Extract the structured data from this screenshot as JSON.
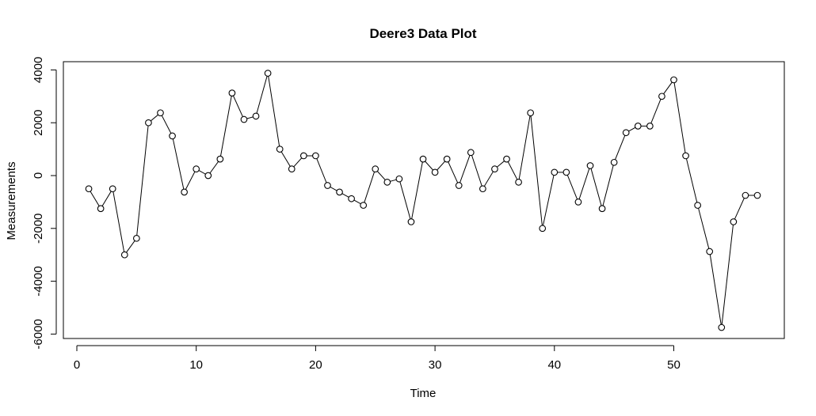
{
  "chart_data": {
    "type": "line",
    "title": "Deere3 Data Plot",
    "xlabel": "Time",
    "ylabel": "Measurements",
    "xlim": [
      0,
      57
    ],
    "ylim": [
      -6000,
      4000
    ],
    "x_ticks": [
      0,
      10,
      20,
      30,
      40,
      50
    ],
    "y_ticks": [
      -6000,
      -4000,
      -2000,
      0,
      2000,
      4000
    ],
    "x_tick_labels": [
      "0",
      "10",
      "20",
      "30",
      "40",
      "50"
    ],
    "y_tick_labels": [
      "-6000",
      "-4000",
      "-2000",
      "0",
      "2000",
      "4000"
    ],
    "grid": false,
    "legend": "none",
    "series": [
      {
        "marker": "open-circle",
        "line_color": "#000000",
        "x": [
          1,
          2,
          3,
          4,
          5,
          6,
          7,
          8,
          9,
          10,
          11,
          12,
          13,
          14,
          15,
          16,
          17,
          18,
          19,
          20,
          21,
          22,
          23,
          24,
          25,
          26,
          27,
          28,
          29,
          30,
          31,
          32,
          33,
          34,
          35,
          36,
          37,
          38,
          39,
          40,
          41,
          42,
          43,
          44,
          45,
          46,
          47,
          48,
          49,
          50,
          51,
          52,
          53,
          54,
          55,
          56,
          57
        ],
        "values": [
          -500,
          -1250,
          -500,
          -3000,
          -2375,
          2000,
          2375,
          1500,
          -625,
          250,
          0,
          625,
          3125,
          2125,
          2250,
          3875,
          1000,
          250,
          750,
          750,
          -375,
          -625,
          -875,
          -1125,
          250,
          -250,
          -125,
          -1750,
          625,
          125,
          625,
          -375,
          875,
          -500,
          250,
          625,
          -250,
          2375,
          -2000,
          125,
          125,
          -1000,
          375,
          -1250,
          500,
          1625,
          1875,
          1875,
          3000,
          3625,
          750,
          -1125,
          -2875,
          -5750,
          -1750,
          -750,
          -750
        ]
      }
    ]
  }
}
